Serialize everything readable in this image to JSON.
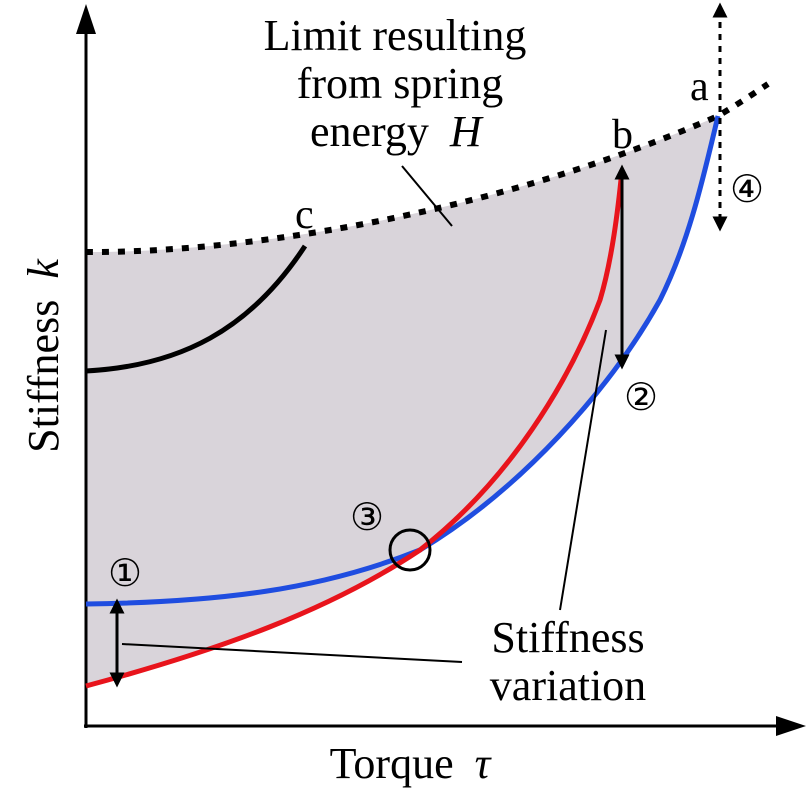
{
  "axes": {
    "x_label": "Torque",
    "x_symbol": "τ",
    "y_label": "Stiffness",
    "y_symbol": "k"
  },
  "limit_label": {
    "line1": "Limit resulting",
    "line2": "from spring",
    "line3": "energy",
    "symbol": "H"
  },
  "points": {
    "a": "a",
    "b": "b",
    "c": "c"
  },
  "markers": {
    "m1": "①",
    "m2": "②",
    "m3": "③",
    "m4": "④"
  },
  "variation_label": {
    "line1": "Stiffness",
    "line2": "variation"
  },
  "colors": {
    "region_fill": "#d9d4da",
    "blue_curve": "#1f4de0",
    "red_curve": "#e8141c",
    "black_curve": "#000000",
    "axis": "#000000"
  }
}
